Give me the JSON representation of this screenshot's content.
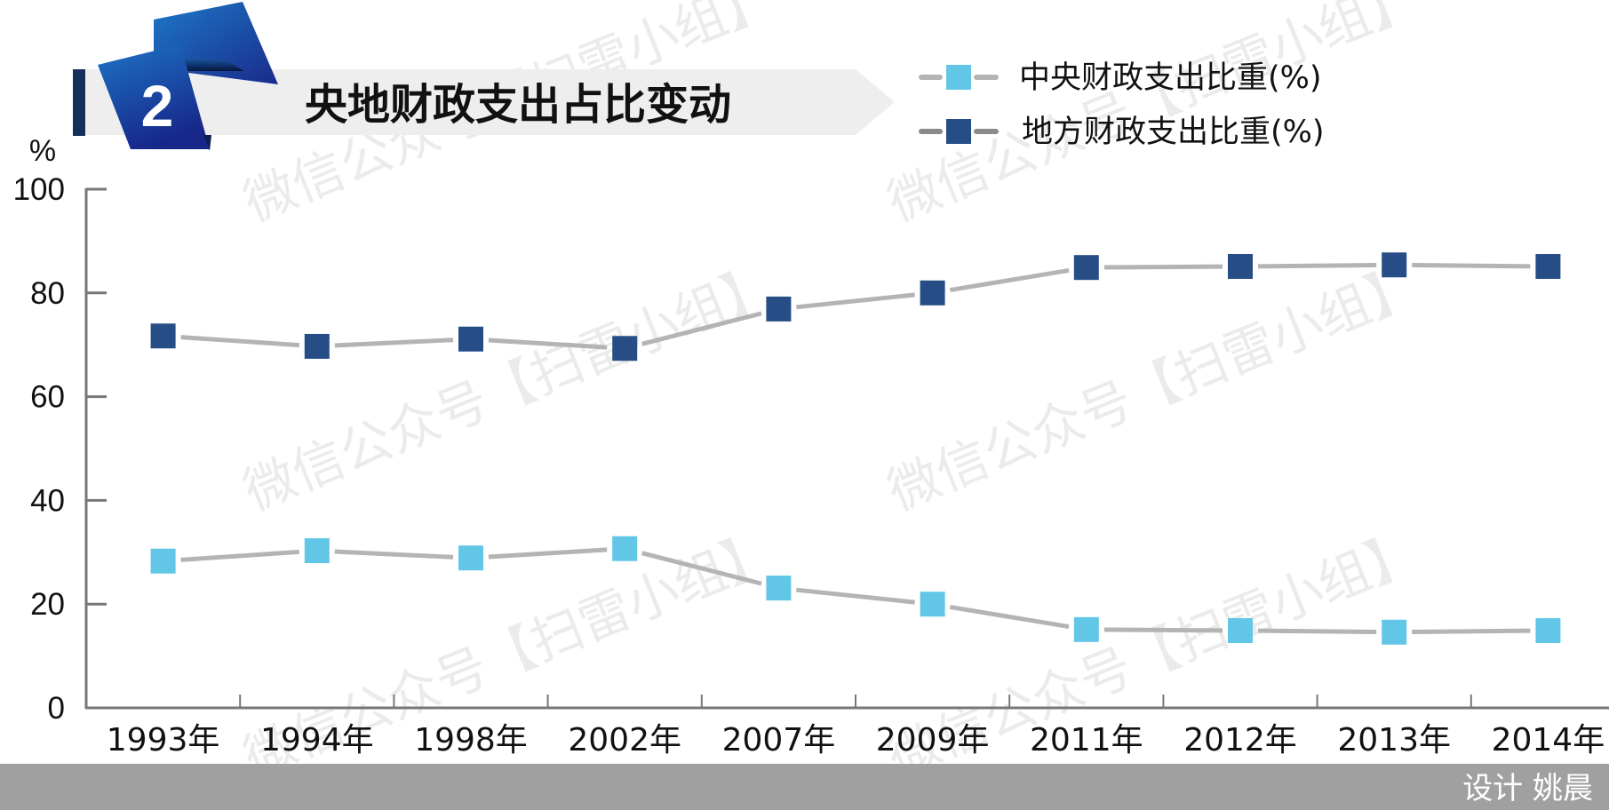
{
  "header": {
    "badge_number": "2",
    "title": "央地财政支出占比变动"
  },
  "legend": {
    "items": [
      {
        "label": "中央财政支出比重(%)",
        "marker_color": "#62c6e6",
        "line_color": "#b4b4b4"
      },
      {
        "label": "地方财政支出比重(%)",
        "marker_color": "#264d85",
        "line_color": "#8a8a8a"
      }
    ]
  },
  "axis": {
    "y_unit": "%",
    "y_ticks": [
      "0",
      "20",
      "40",
      "60",
      "80",
      "100"
    ]
  },
  "watermark": "微信公众号【扫雷小组】",
  "footer": {
    "credit": "设计 姚晨"
  },
  "colors": {
    "central": "#62c6e6",
    "local": "#264d85",
    "connector": "#b4b4b4",
    "axis": "#777777",
    "footer_bg": "#a0a0a0",
    "title_band": "#eeeeee",
    "badge_bar": "#14305a"
  },
  "chart_data": {
    "type": "line",
    "title": "央地财政支出占比变动",
    "xlabel": "",
    "ylabel": "%",
    "ylim": [
      0,
      100
    ],
    "yticks": [
      0,
      20,
      40,
      60,
      80,
      100
    ],
    "grid": false,
    "legend_position": "top-right",
    "categories": [
      "1993年",
      "1994年",
      "1998年",
      "2002年",
      "2007年",
      "2009年",
      "2011年",
      "2012年",
      "2013年",
      "2014年"
    ],
    "series": [
      {
        "name": "中央财政支出比重(%)",
        "color": "#62c6e6",
        "values": [
          28.3,
          30.3,
          28.9,
          30.7,
          23.1,
          20.0,
          15.1,
          14.9,
          14.6,
          14.9
        ]
      },
      {
        "name": "地方财政支出比重(%)",
        "color": "#264d85",
        "values": [
          71.7,
          69.7,
          71.1,
          69.3,
          76.9,
          80.0,
          84.9,
          85.1,
          85.4,
          85.1
        ]
      }
    ]
  }
}
